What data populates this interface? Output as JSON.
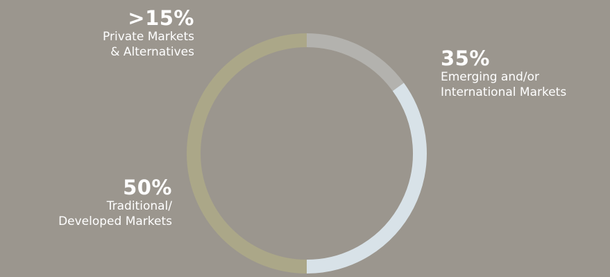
{
  "chart_data": {
    "type": "pie",
    "title": "",
    "slices": [
      {
        "label": "Private Markets & Alternatives",
        "value": 15,
        "display": ">15%",
        "desc_lines": [
          "Private Markets",
          "& Alternatives"
        ],
        "color": "#b3b2ae"
      },
      {
        "label": "Emerging and/or International Markets",
        "value": 35,
        "display": "35%",
        "desc_lines": [
          "Emerging and/or",
          "International Markets"
        ],
        "color": "#d8e2e8"
      },
      {
        "label": "Traditional/ Developed Markets",
        "value": 50,
        "display": "50%",
        "desc_lines": [
          "Traditional/",
          "Developed Markets"
        ],
        "color": "#aba788"
      }
    ],
    "legend": "none"
  },
  "colors": {
    "background": "#9b968e",
    "text": "#ffffff"
  }
}
